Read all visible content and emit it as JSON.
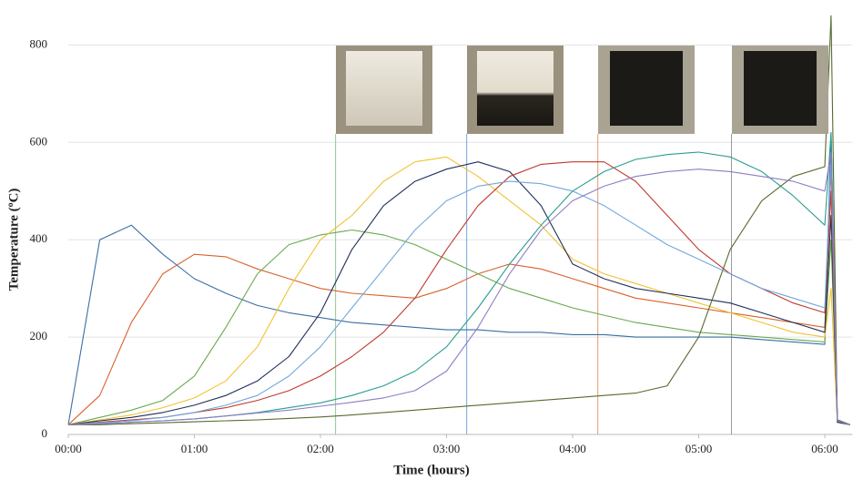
{
  "chart_data": {
    "type": "line",
    "xlabel": "Time (hours)",
    "ylabel": "Temperature (ºC)",
    "xlim": [
      0,
      6.22
    ],
    "ylim": [
      0,
      870
    ],
    "xticks": [
      {
        "value": 0,
        "label": "00:00"
      },
      {
        "value": 1,
        "label": "01:00"
      },
      {
        "value": 2,
        "label": "02:00"
      },
      {
        "value": 3,
        "label": "03:00"
      },
      {
        "value": 4,
        "label": "04:00"
      },
      {
        "value": 5,
        "label": "05:00"
      },
      {
        "value": 6,
        "label": "06:00"
      }
    ],
    "yticks": [
      0,
      200,
      400,
      600,
      800
    ],
    "grid": true,
    "x": [
      0,
      0.25,
      0.5,
      0.75,
      1,
      1.25,
      1.5,
      1.75,
      2,
      2.25,
      2.5,
      2.75,
      3,
      3.25,
      3.5,
      3.75,
      4,
      4.25,
      4.5,
      4.75,
      5,
      5.25,
      5.5,
      5.75,
      6,
      6.05,
      6.1,
      6.2
    ],
    "series": [
      {
        "color": "#3a6ea5",
        "values": [
          20,
          400,
          430,
          370,
          320,
          290,
          265,
          250,
          240,
          230,
          225,
          220,
          215,
          215,
          210,
          210,
          205,
          205,
          200,
          200,
          200,
          200,
          195,
          190,
          185,
          620,
          30,
          20
        ]
      },
      {
        "color": "#d9622b",
        "values": [
          20,
          80,
          230,
          330,
          370,
          365,
          340,
          320,
          300,
          290,
          285,
          280,
          300,
          330,
          350,
          340,
          320,
          300,
          280,
          270,
          260,
          250,
          240,
          230,
          220,
          550,
          30,
          20
        ]
      },
      {
        "color": "#6aa84f",
        "values": [
          20,
          35,
          50,
          70,
          120,
          220,
          330,
          390,
          410,
          420,
          410,
          390,
          360,
          330,
          300,
          280,
          260,
          245,
          230,
          220,
          210,
          205,
          200,
          195,
          190,
          400,
          25,
          20
        ]
      },
      {
        "color": "#f1c232",
        "values": [
          20,
          30,
          40,
          55,
          75,
          110,
          180,
          300,
          400,
          450,
          520,
          560,
          570,
          530,
          480,
          430,
          360,
          330,
          310,
          290,
          270,
          250,
          230,
          210,
          200,
          300,
          25,
          20
        ]
      },
      {
        "color": "#1f2f5a",
        "values": [
          20,
          28,
          35,
          45,
          60,
          80,
          110,
          160,
          250,
          380,
          470,
          520,
          545,
          560,
          540,
          470,
          350,
          320,
          300,
          290,
          280,
          270,
          250,
          230,
          210,
          450,
          25,
          20
        ]
      },
      {
        "color": "#c0392b",
        "values": [
          20,
          25,
          30,
          35,
          45,
          55,
          70,
          90,
          120,
          160,
          210,
          280,
          380,
          470,
          530,
          555,
          560,
          560,
          520,
          450,
          380,
          330,
          300,
          270,
          250,
          500,
          30,
          20
        ]
      },
      {
        "color": "#2a9d8f",
        "values": [
          20,
          22,
          25,
          28,
          32,
          38,
          45,
          55,
          65,
          80,
          100,
          130,
          180,
          260,
          350,
          430,
          500,
          540,
          565,
          575,
          580,
          570,
          540,
          490,
          430,
          620,
          30,
          20
        ]
      },
      {
        "color": "#556b2f",
        "values": [
          20,
          20,
          22,
          24,
          26,
          28,
          30,
          33,
          36,
          40,
          45,
          50,
          55,
          60,
          65,
          70,
          75,
          80,
          85,
          100,
          200,
          380,
          480,
          530,
          550,
          860,
          30,
          20
        ]
      },
      {
        "color": "#6fa8dc",
        "values": [
          20,
          24,
          28,
          35,
          45,
          60,
          80,
          120,
          180,
          260,
          340,
          420,
          480,
          510,
          520,
          515,
          500,
          470,
          430,
          390,
          360,
          330,
          300,
          280,
          260,
          560,
          28,
          20
        ]
      },
      {
        "color": "#8e7cc3",
        "values": [
          20,
          22,
          25,
          28,
          32,
          38,
          44,
          50,
          58,
          66,
          75,
          90,
          130,
          220,
          330,
          420,
          480,
          510,
          530,
          540,
          545,
          540,
          530,
          520,
          500,
          580,
          28,
          20
        ]
      }
    ],
    "markers": [
      {
        "x": 2.12,
        "color": "#8fc98f"
      },
      {
        "x": 3.16,
        "color": "#6fa8dc"
      },
      {
        "x": 4.2,
        "color": "#e69a6b"
      },
      {
        "x": 5.26,
        "color": "#999999"
      }
    ]
  }
}
